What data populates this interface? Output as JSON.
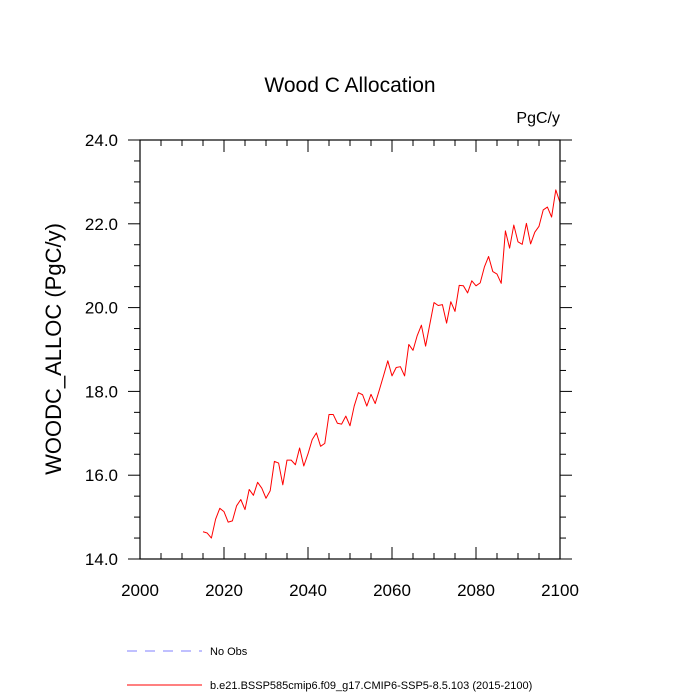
{
  "chart_data": {
    "type": "line",
    "title": "Wood C Allocation",
    "units": "PgC/y",
    "ylabel": "WOODC_ALLOC  (PgC/y)",
    "xlabel": "",
    "xlim": [
      2000,
      2100
    ],
    "ylim": [
      14.0,
      24.0
    ],
    "xticks": [
      2000,
      2020,
      2040,
      2060,
      2080,
      2100
    ],
    "xtick_labels": [
      "2000",
      "2020",
      "2040",
      "2060",
      "2080",
      "2100"
    ],
    "yticks": [
      14.0,
      16.0,
      18.0,
      20.0,
      22.0,
      24.0
    ],
    "ytick_labels": [
      "14.0",
      "16.0",
      "18.0",
      "20.0",
      "22.0",
      "24.0"
    ],
    "grid": false,
    "legend_position": "bottom",
    "legend": [
      {
        "label": "No Obs",
        "color": "#8080ff",
        "dash": "dashed"
      },
      {
        "label": "b.e21.BSSP585cmip6.f09_g17.CMIP6-SSP5-8.5.103 (2015-2100)",
        "color": "#ff0000",
        "dash": "solid"
      }
    ],
    "series": [
      {
        "color": "#ff0000",
        "x": [
          2015,
          2016,
          2017,
          2018,
          2019,
          2020,
          2021,
          2022,
          2023,
          2024,
          2025,
          2026,
          2027,
          2028,
          2029,
          2030,
          2031,
          2032,
          2033,
          2034,
          2035,
          2036,
          2037,
          2038,
          2039,
          2040,
          2041,
          2042,
          2043,
          2044,
          2045,
          2046,
          2047,
          2048,
          2049,
          2050,
          2051,
          2052,
          2053,
          2054,
          2055,
          2056,
          2057,
          2058,
          2059,
          2060,
          2061,
          2062,
          2063,
          2064,
          2065,
          2066,
          2067,
          2068,
          2069,
          2070,
          2071,
          2072,
          2073,
          2074,
          2075,
          2076,
          2077,
          2078,
          2079,
          2080,
          2081,
          2082,
          2083,
          2084,
          2085,
          2086,
          2087,
          2088,
          2089,
          2090,
          2091,
          2092,
          2093,
          2094,
          2095,
          2096,
          2097,
          2098,
          2099,
          2100
        ],
        "values": [
          14.65,
          14.62,
          14.5,
          14.95,
          15.21,
          15.13,
          14.88,
          14.91,
          15.27,
          15.42,
          15.18,
          15.66,
          15.52,
          15.83,
          15.69,
          15.45,
          15.63,
          16.33,
          16.29,
          15.77,
          16.36,
          16.36,
          16.25,
          16.65,
          16.22,
          16.51,
          16.85,
          17.01,
          16.69,
          16.76,
          17.45,
          17.45,
          17.24,
          17.22,
          17.41,
          17.18,
          17.65,
          17.97,
          17.92,
          17.65,
          17.93,
          17.71,
          18.04,
          18.38,
          18.73,
          18.37,
          18.57,
          18.59,
          18.37,
          19.12,
          18.98,
          19.33,
          19.58,
          19.08,
          19.6,
          20.12,
          20.05,
          20.07,
          19.63,
          20.14,
          19.91,
          20.53,
          20.52,
          20.35,
          20.64,
          20.52,
          20.59,
          20.97,
          21.22,
          20.86,
          20.8,
          20.58,
          21.83,
          21.42,
          21.97,
          21.57,
          21.51,
          22.01,
          21.52,
          21.8,
          21.94,
          22.33,
          22.4,
          22.16,
          22.81,
          22.51
        ]
      }
    ]
  }
}
